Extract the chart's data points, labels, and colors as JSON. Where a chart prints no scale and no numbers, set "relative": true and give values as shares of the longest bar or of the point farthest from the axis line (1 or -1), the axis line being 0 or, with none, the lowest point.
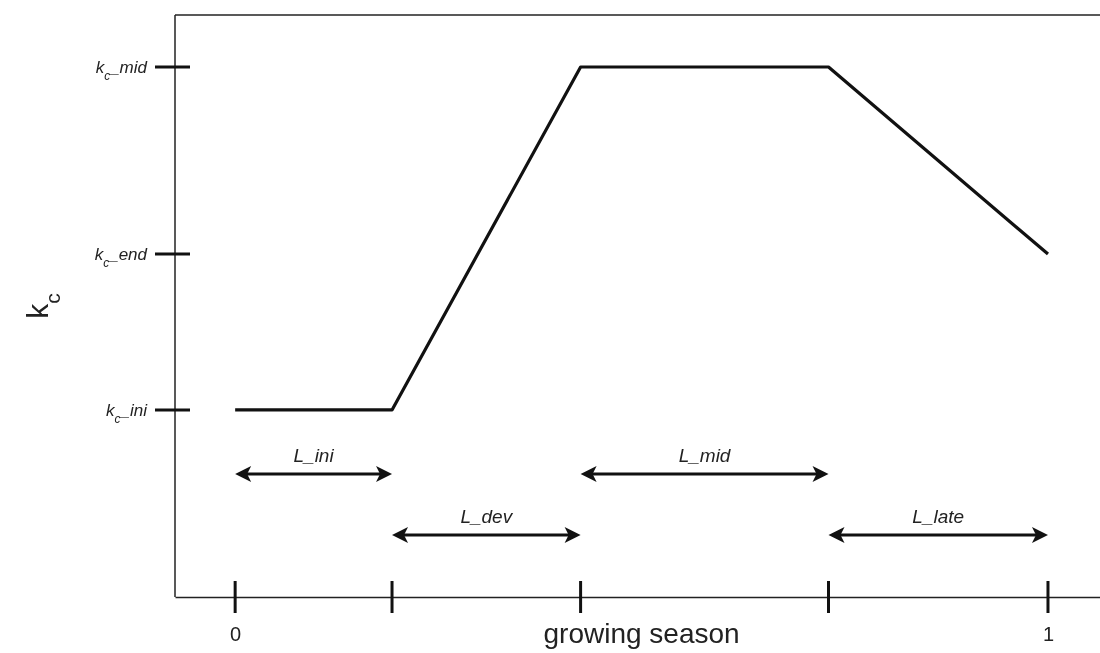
{
  "chart_data": {
    "type": "line",
    "relative": true,
    "xlabel": "growing season",
    "ylabel": "k$_{c}$",
    "x": [
      0,
      0.193,
      0.425,
      0.73,
      1
    ],
    "series": [
      {
        "color": "#111111",
        "values": [
          0.353,
          0.353,
          1,
          1,
          0.647
        ]
      }
    ],
    "xlim": [
      -0.074,
      1.064
    ],
    "xticks": [
      0,
      1
    ],
    "annotations": [
      "k$_{c}$_ini",
      "k$_{c}$_end",
      "k$_{c}$_mid",
      "L_ini",
      "L_dev",
      "L_mid",
      "L_late"
    ],
    "marker": "none",
    "line_style": "solid"
  }
}
